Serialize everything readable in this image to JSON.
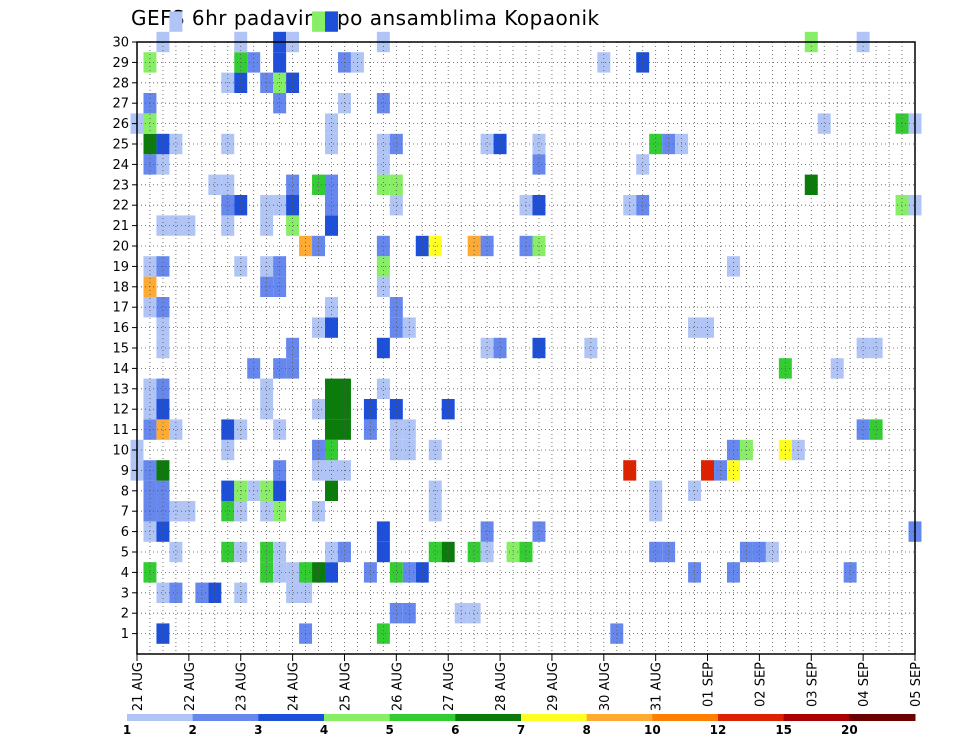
{
  "chart_data": {
    "type": "heatmap",
    "title": "GEFS 6hr padavine po ansamblima Kopaonik",
    "xlabel": "",
    "ylabel": "",
    "x_tick_labels": [
      "21 AUG",
      "22 AUG",
      "23 AUG",
      "24 AUG",
      "25 AUG",
      "26 AUG",
      "27 AUG",
      "28 AUG",
      "29 AUG",
      "30 AUG",
      "31 AUG",
      "01 SEP",
      "02 SEP",
      "03 SEP",
      "04 SEP",
      "05 SEP"
    ],
    "y_tick_labels": [
      "1",
      "2",
      "3",
      "4",
      "5",
      "6",
      "7",
      "8",
      "9",
      "10",
      "11",
      "12",
      "13",
      "14",
      "15",
      "16",
      "17",
      "18",
      "19",
      "20",
      "21",
      "22",
      "23",
      "24",
      "25",
      "26",
      "27",
      "28",
      "29",
      "30"
    ],
    "xlim": [
      0,
      60
    ],
    "ylim": [
      0,
      30
    ],
    "time_step_hours": 6,
    "grid": "dotted",
    "colorbar": {
      "labels": [
        "1",
        "2",
        "3",
        "4",
        "5",
        "6",
        "7",
        "8",
        "10",
        "12",
        "15",
        "20"
      ],
      "colors": [
        "#b0c4f6",
        "#6688ee",
        "#1d4fd8",
        "#88ee66",
        "#33cc33",
        "#0b7c0b",
        "#ffff22",
        "#ffaa33",
        "#ff7f00",
        "#dd2200",
        "#aa0000",
        "#6b0000"
      ]
    },
    "cells": [
      [
        2,
        1,
        3
      ],
      [
        13,
        1,
        2
      ],
      [
        19,
        1,
        5
      ],
      [
        37,
        1,
        2
      ],
      [
        20,
        2,
        2
      ],
      [
        21,
        2,
        2
      ],
      [
        25,
        2,
        1
      ],
      [
        26,
        2,
        1
      ],
      [
        2,
        3,
        1
      ],
      [
        3,
        3,
        2
      ],
      [
        5,
        3,
        2
      ],
      [
        6,
        3,
        3
      ],
      [
        8,
        3,
        1
      ],
      [
        12,
        3,
        1
      ],
      [
        13,
        3,
        1
      ],
      [
        1,
        4,
        5
      ],
      [
        10,
        4,
        5
      ],
      [
        11,
        4,
        1
      ],
      [
        12,
        4,
        1
      ],
      [
        13,
        4,
        5
      ],
      [
        14,
        4,
        6
      ],
      [
        15,
        4,
        3
      ],
      [
        18,
        4,
        2
      ],
      [
        20,
        4,
        5
      ],
      [
        21,
        4,
        2
      ],
      [
        22,
        4,
        3
      ],
      [
        43,
        4,
        2
      ],
      [
        46,
        4,
        2
      ],
      [
        55,
        4,
        2
      ],
      [
        3,
        5,
        1
      ],
      [
        7,
        5,
        5
      ],
      [
        8,
        5,
        1
      ],
      [
        10,
        5,
        5
      ],
      [
        11,
        5,
        1
      ],
      [
        15,
        5,
        1
      ],
      [
        16,
        5,
        2
      ],
      [
        19,
        5,
        3
      ],
      [
        23,
        5,
        5
      ],
      [
        24,
        5,
        6
      ],
      [
        26,
        5,
        5
      ],
      [
        27,
        5,
        1
      ],
      [
        29,
        5,
        4
      ],
      [
        30,
        5,
        5
      ],
      [
        40,
        5,
        2
      ],
      [
        41,
        5,
        2
      ],
      [
        47,
        5,
        2
      ],
      [
        48,
        5,
        2
      ],
      [
        49,
        5,
        1
      ],
      [
        1,
        6,
        1
      ],
      [
        2,
        6,
        3
      ],
      [
        19,
        6,
        3
      ],
      [
        27,
        6,
        2
      ],
      [
        31,
        6,
        2
      ],
      [
        60,
        6,
        2
      ],
      [
        1,
        7,
        2
      ],
      [
        2,
        7,
        2
      ],
      [
        3,
        7,
        1
      ],
      [
        4,
        7,
        1
      ],
      [
        7,
        7,
        5
      ],
      [
        8,
        7,
        1
      ],
      [
        10,
        7,
        1
      ],
      [
        11,
        7,
        4
      ],
      [
        14,
        7,
        1
      ],
      [
        23,
        7,
        1
      ],
      [
        40,
        7,
        1
      ],
      [
        1,
        8,
        2
      ],
      [
        2,
        8,
        2
      ],
      [
        7,
        8,
        3
      ],
      [
        8,
        8,
        4
      ],
      [
        9,
        8,
        1
      ],
      [
        10,
        8,
        4
      ],
      [
        11,
        8,
        3
      ],
      [
        15,
        8,
        6
      ],
      [
        23,
        8,
        1
      ],
      [
        40,
        8,
        1
      ],
      [
        43,
        8,
        1
      ],
      [
        0,
        9,
        1
      ],
      [
        1,
        9,
        2
      ],
      [
        2,
        9,
        6
      ],
      [
        11,
        9,
        2
      ],
      [
        14,
        9,
        1
      ],
      [
        15,
        9,
        1
      ],
      [
        16,
        9,
        1
      ],
      [
        38,
        9,
        10
      ],
      [
        44,
        9,
        10
      ],
      [
        45,
        9,
        2
      ],
      [
        46,
        9,
        7
      ],
      [
        0,
        10,
        1
      ],
      [
        7,
        10,
        1
      ],
      [
        14,
        10,
        2
      ],
      [
        15,
        10,
        5
      ],
      [
        20,
        10,
        1
      ],
      [
        21,
        10,
        1
      ],
      [
        23,
        10,
        1
      ],
      [
        46,
        10,
        2
      ],
      [
        47,
        10,
        4
      ],
      [
        50,
        10,
        7
      ],
      [
        51,
        10,
        1
      ],
      [
        1,
        11,
        2
      ],
      [
        2,
        11,
        8
      ],
      [
        3,
        11,
        1
      ],
      [
        7,
        11,
        3
      ],
      [
        8,
        11,
        1
      ],
      [
        11,
        11,
        1
      ],
      [
        15,
        11,
        6
      ],
      [
        16,
        11,
        6
      ],
      [
        18,
        11,
        2
      ],
      [
        20,
        11,
        1
      ],
      [
        21,
        11,
        1
      ],
      [
        56,
        11,
        2
      ],
      [
        57,
        11,
        5
      ],
      [
        1,
        12,
        1
      ],
      [
        2,
        12,
        3
      ],
      [
        10,
        12,
        1
      ],
      [
        14,
        12,
        1
      ],
      [
        15,
        12,
        6
      ],
      [
        16,
        12,
        6
      ],
      [
        18,
        12,
        3
      ],
      [
        20,
        12,
        3
      ],
      [
        24,
        12,
        3
      ],
      [
        1,
        13,
        1
      ],
      [
        2,
        13,
        2
      ],
      [
        10,
        13,
        1
      ],
      [
        15,
        13,
        6
      ],
      [
        16,
        13,
        6
      ],
      [
        19,
        13,
        1
      ],
      [
        9,
        14,
        2
      ],
      [
        11,
        14,
        2
      ],
      [
        12,
        14,
        2
      ],
      [
        50,
        14,
        5
      ],
      [
        54,
        14,
        1
      ],
      [
        2,
        15,
        1
      ],
      [
        12,
        15,
        2
      ],
      [
        19,
        15,
        3
      ],
      [
        27,
        15,
        1
      ],
      [
        28,
        15,
        2
      ],
      [
        31,
        15,
        3
      ],
      [
        35,
        15,
        1
      ],
      [
        56,
        15,
        1
      ],
      [
        57,
        15,
        1
      ],
      [
        2,
        16,
        1
      ],
      [
        14,
        16,
        1
      ],
      [
        15,
        16,
        3
      ],
      [
        20,
        16,
        2
      ],
      [
        21,
        16,
        1
      ],
      [
        43,
        16,
        1
      ],
      [
        44,
        16,
        1
      ],
      [
        1,
        17,
        1
      ],
      [
        2,
        17,
        2
      ],
      [
        15,
        17,
        1
      ],
      [
        20,
        17,
        2
      ],
      [
        1,
        18,
        8
      ],
      [
        10,
        18,
        2
      ],
      [
        11,
        18,
        2
      ],
      [
        19,
        18,
        1
      ],
      [
        1,
        19,
        1
      ],
      [
        2,
        19,
        2
      ],
      [
        8,
        19,
        1
      ],
      [
        10,
        19,
        1
      ],
      [
        11,
        19,
        2
      ],
      [
        19,
        19,
        4
      ],
      [
        46,
        19,
        1
      ],
      [
        13,
        20,
        8
      ],
      [
        14,
        20,
        2
      ],
      [
        19,
        20,
        2
      ],
      [
        22,
        20,
        3
      ],
      [
        23,
        20,
        7
      ],
      [
        26,
        20,
        8
      ],
      [
        27,
        20,
        2
      ],
      [
        30,
        20,
        2
      ],
      [
        31,
        20,
        4
      ],
      [
        2,
        21,
        1
      ],
      [
        3,
        21,
        1
      ],
      [
        4,
        21,
        1
      ],
      [
        7,
        21,
        1
      ],
      [
        10,
        21,
        1
      ],
      [
        12,
        21,
        4
      ],
      [
        15,
        21,
        3
      ],
      [
        7,
        22,
        2
      ],
      [
        8,
        22,
        3
      ],
      [
        10,
        22,
        1
      ],
      [
        11,
        22,
        1
      ],
      [
        12,
        22,
        3
      ],
      [
        15,
        22,
        2
      ],
      [
        20,
        22,
        1
      ],
      [
        30,
        22,
        1
      ],
      [
        31,
        22,
        3
      ],
      [
        38,
        22,
        1
      ],
      [
        39,
        22,
        2
      ],
      [
        59,
        22,
        4
      ],
      [
        60,
        22,
        1
      ],
      [
        6,
        23,
        1
      ],
      [
        7,
        23,
        1
      ],
      [
        12,
        23,
        2
      ],
      [
        14,
        23,
        5
      ],
      [
        15,
        23,
        2
      ],
      [
        19,
        23,
        4
      ],
      [
        20,
        23,
        4
      ],
      [
        52,
        23,
        6
      ],
      [
        1,
        24,
        2
      ],
      [
        2,
        24,
        1
      ],
      [
        19,
        24,
        1
      ],
      [
        31,
        24,
        2
      ],
      [
        39,
        24,
        1
      ],
      [
        1,
        25,
        6
      ],
      [
        2,
        25,
        3
      ],
      [
        3,
        25,
        1
      ],
      [
        7,
        25,
        1
      ],
      [
        15,
        25,
        1
      ],
      [
        19,
        25,
        1
      ],
      [
        20,
        25,
        2
      ],
      [
        27,
        25,
        1
      ],
      [
        28,
        25,
        3
      ],
      [
        31,
        25,
        1
      ],
      [
        40,
        25,
        5
      ],
      [
        41,
        25,
        2
      ],
      [
        42,
        25,
        1
      ],
      [
        0,
        26,
        1
      ],
      [
        1,
        26,
        4
      ],
      [
        15,
        26,
        1
      ],
      [
        53,
        26,
        1
      ],
      [
        59,
        26,
        5
      ],
      [
        60,
        26,
        1
      ],
      [
        1,
        27,
        2
      ],
      [
        16,
        27,
        1
      ],
      [
        19,
        27,
        2
      ],
      [
        11,
        27,
        2
      ],
      [
        7,
        28,
        1
      ],
      [
        8,
        28,
        3
      ],
      [
        10,
        28,
        2
      ],
      [
        11,
        28,
        4
      ],
      [
        12,
        28,
        3
      ],
      [
        1,
        29,
        4
      ],
      [
        8,
        29,
        5
      ],
      [
        9,
        29,
        2
      ],
      [
        11,
        29,
        3
      ],
      [
        16,
        29,
        2
      ],
      [
        17,
        29,
        1
      ],
      [
        36,
        29,
        1
      ],
      [
        39,
        29,
        3
      ],
      [
        2,
        30,
        1
      ],
      [
        8,
        30,
        1
      ],
      [
        11,
        30,
        3
      ],
      [
        12,
        30,
        1
      ],
      [
        19,
        30,
        1
      ],
      [
        52,
        30,
        4
      ],
      [
        56,
        30,
        1
      ],
      [
        3,
        31,
        1
      ],
      [
        14,
        31,
        4
      ],
      [
        15,
        31,
        3
      ]
    ]
  }
}
